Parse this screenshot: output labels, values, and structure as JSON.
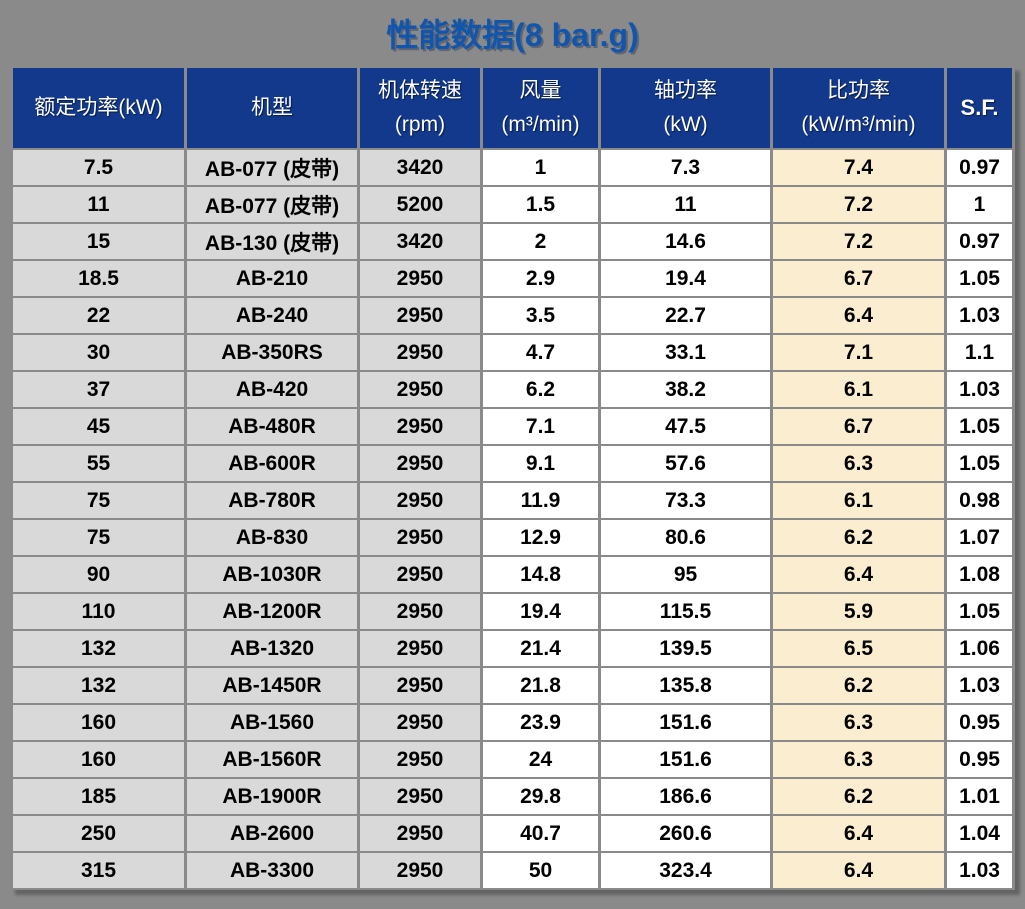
{
  "page_title": "性能数据(8 bar.g)",
  "colors": {
    "page_bg": "#8A8A8A",
    "header_bg": "#12398C",
    "title_color": "#1156AC",
    "gray_cell": "#D9D9D9",
    "white_cell": "#FFFFFF",
    "cream_cell": "#FBEED0"
  },
  "chart_data": {
    "type": "table",
    "title": "性能数据(8 bar.g)",
    "columns": [
      "额定功率(kW)",
      "机型",
      "机体转速\n(rpm)",
      "风量\n(m³/min)",
      "轴功率\n(kW)",
      "比功率\n(kW/m³/min)",
      "S.F."
    ],
    "rows": [
      [
        "7.5",
        "AB-077 (皮带)",
        "3420",
        "1",
        "7.3",
        "7.4",
        "0.97"
      ],
      [
        "11",
        "AB-077 (皮带)",
        "5200",
        "1.5",
        "11",
        "7.2",
        "1"
      ],
      [
        "15",
        "AB-130 (皮带)",
        "3420",
        "2",
        "14.6",
        "7.2",
        "0.97"
      ],
      [
        "18.5",
        "AB-210",
        "2950",
        "2.9",
        "19.4",
        "6.7",
        "1.05"
      ],
      [
        "22",
        "AB-240",
        "2950",
        "3.5",
        "22.7",
        "6.4",
        "1.03"
      ],
      [
        "30",
        "AB-350RS",
        "2950",
        "4.7",
        "33.1",
        "7.1",
        "1.1"
      ],
      [
        "37",
        "AB-420",
        "2950",
        "6.2",
        "38.2",
        "6.1",
        "1.03"
      ],
      [
        "45",
        "AB-480R",
        "2950",
        "7.1",
        "47.5",
        "6.7",
        "1.05"
      ],
      [
        "55",
        "AB-600R",
        "2950",
        "9.1",
        "57.6",
        "6.3",
        "1.05"
      ],
      [
        "75",
        "AB-780R",
        "2950",
        "11.9",
        "73.3",
        "6.1",
        "0.98"
      ],
      [
        "75",
        "AB-830",
        "2950",
        "12.9",
        "80.6",
        "6.2",
        "1.07"
      ],
      [
        "90",
        "AB-1030R",
        "2950",
        "14.8",
        "95",
        "6.4",
        "1.08"
      ],
      [
        "110",
        "AB-1200R",
        "2950",
        "19.4",
        "115.5",
        "5.9",
        "1.05"
      ],
      [
        "132",
        "AB-1320",
        "2950",
        "21.4",
        "139.5",
        "6.5",
        "1.06"
      ],
      [
        "132",
        "AB-1450R",
        "2950",
        "21.8",
        "135.8",
        "6.2",
        "1.03"
      ],
      [
        "160",
        "AB-1560",
        "2950",
        "23.9",
        "151.6",
        "6.3",
        "0.95"
      ],
      [
        "160",
        "AB-1560R",
        "2950",
        "24",
        "151.6",
        "6.3",
        "0.95"
      ],
      [
        "185",
        "AB-1900R",
        "2950",
        "29.8",
        "186.6",
        "6.2",
        "1.01"
      ],
      [
        "250",
        "AB-2600",
        "2950",
        "40.7",
        "260.6",
        "6.4",
        "1.04"
      ],
      [
        "315",
        "AB-3300",
        "2950",
        "50",
        "323.4",
        "6.4",
        "1.03"
      ]
    ]
  }
}
